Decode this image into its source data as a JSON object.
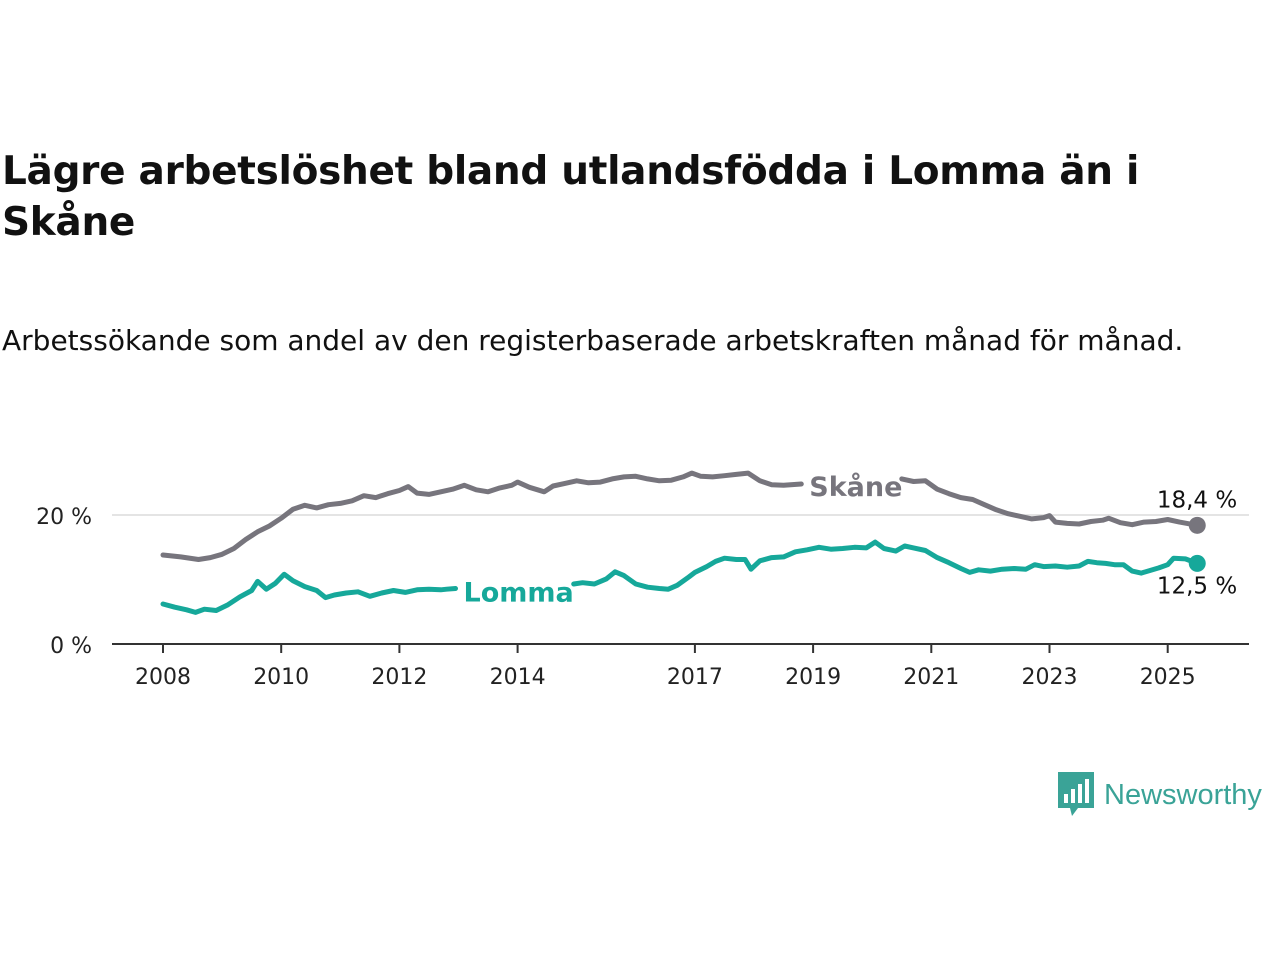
{
  "title": "Lägre arbetslöshet bland utlandsfödda i Lomma än i Skåne",
  "subtitle": "Arbetssökande som andel av den registerbaserade arbetskraften månad för månad.",
  "logo_text": "Newsworthy",
  "colors": {
    "skane": "#77757d",
    "lomma": "#16a89a",
    "grid": "#dcdcdc",
    "axis": "#333333"
  },
  "chart_data": {
    "type": "line",
    "title": "Lägre arbetslöshet bland utlandsfödda i Lomma än i Skåne",
    "subtitle": "Arbetssökande som andel av den registerbaserade arbetskraften månad för månad.",
    "x_ticks": [
      "2008",
      "2010",
      "2012",
      "2014",
      "2017",
      "2019",
      "2021",
      "2023",
      "2025"
    ],
    "y_ticks": [
      "0 %",
      "20 %"
    ],
    "xlim": [
      2007.3,
      2026.4
    ],
    "ylim": [
      0,
      30
    ],
    "grid": true,
    "series": [
      {
        "name": "Skåne",
        "end_label": "18,4 %",
        "points": [
          [
            2008.0,
            13.8
          ],
          [
            2008.3,
            13.5
          ],
          [
            2008.6,
            13.1
          ],
          [
            2008.8,
            13.4
          ],
          [
            2009.0,
            13.9
          ],
          [
            2009.2,
            14.8
          ],
          [
            2009.4,
            16.2
          ],
          [
            2009.6,
            17.4
          ],
          [
            2009.8,
            18.3
          ],
          [
            2010.0,
            19.5
          ],
          [
            2010.2,
            20.9
          ],
          [
            2010.4,
            21.5
          ],
          [
            2010.6,
            21.1
          ],
          [
            2010.8,
            21.6
          ],
          [
            2011.0,
            21.8
          ],
          [
            2011.2,
            22.2
          ],
          [
            2011.4,
            23.0
          ],
          [
            2011.6,
            22.7
          ],
          [
            2011.8,
            23.3
          ],
          [
            2012.0,
            23.8
          ],
          [
            2012.15,
            24.4
          ],
          [
            2012.3,
            23.4
          ],
          [
            2012.5,
            23.2
          ],
          [
            2012.7,
            23.6
          ],
          [
            2012.9,
            24.0
          ],
          [
            2013.1,
            24.6
          ],
          [
            2013.3,
            23.9
          ],
          [
            2013.5,
            23.6
          ],
          [
            2013.7,
            24.2
          ],
          [
            2013.9,
            24.6
          ],
          [
            2014.0,
            25.1
          ],
          [
            2014.2,
            24.3
          ],
          [
            2014.45,
            23.6
          ],
          [
            2014.6,
            24.5
          ],
          [
            2014.8,
            24.9
          ],
          [
            2015.0,
            25.3
          ],
          [
            2015.2,
            25.0
          ],
          [
            2015.4,
            25.1
          ],
          [
            2015.6,
            25.6
          ],
          [
            2015.8,
            25.9
          ],
          [
            2016.0,
            26.0
          ],
          [
            2016.2,
            25.6
          ],
          [
            2016.4,
            25.3
          ],
          [
            2016.6,
            25.4
          ],
          [
            2016.8,
            25.9
          ],
          [
            2016.95,
            26.5
          ],
          [
            2017.1,
            26.0
          ],
          [
            2017.3,
            25.9
          ],
          [
            2017.5,
            26.1
          ],
          [
            2017.7,
            26.3
          ],
          [
            2017.9,
            26.5
          ],
          [
            2018.1,
            25.3
          ],
          [
            2018.3,
            24.7
          ],
          [
            2018.5,
            24.6
          ],
          [
            2018.8,
            24.8
          ]
        ],
        "points_b": [
          [
            2020.5,
            25.6
          ],
          [
            2020.7,
            25.2
          ],
          [
            2020.9,
            25.3
          ],
          [
            2021.1,
            24.0
          ],
          [
            2021.3,
            23.3
          ],
          [
            2021.5,
            22.7
          ],
          [
            2021.7,
            22.4
          ],
          [
            2021.9,
            21.6
          ],
          [
            2022.1,
            20.8
          ],
          [
            2022.3,
            20.2
          ],
          [
            2022.5,
            19.8
          ],
          [
            2022.7,
            19.4
          ],
          [
            2022.9,
            19.6
          ],
          [
            2023.0,
            19.9
          ],
          [
            2023.1,
            18.9
          ],
          [
            2023.3,
            18.7
          ],
          [
            2023.5,
            18.6
          ],
          [
            2023.7,
            19.0
          ],
          [
            2023.9,
            19.2
          ],
          [
            2024.0,
            19.5
          ],
          [
            2024.2,
            18.8
          ],
          [
            2024.4,
            18.5
          ],
          [
            2024.6,
            18.9
          ],
          [
            2024.8,
            19.0
          ],
          [
            2025.0,
            19.3
          ],
          [
            2025.2,
            18.9
          ],
          [
            2025.5,
            18.4
          ]
        ]
      },
      {
        "name": "Lomma",
        "end_label": "12,5 %",
        "points": [
          [
            2008.0,
            6.2
          ],
          [
            2008.2,
            5.7
          ],
          [
            2008.4,
            5.3
          ],
          [
            2008.55,
            4.9
          ],
          [
            2008.7,
            5.4
          ],
          [
            2008.9,
            5.2
          ],
          [
            2009.1,
            6.1
          ],
          [
            2009.3,
            7.3
          ],
          [
            2009.5,
            8.3
          ],
          [
            2009.6,
            9.7
          ],
          [
            2009.75,
            8.5
          ],
          [
            2009.9,
            9.4
          ],
          [
            2010.05,
            10.8
          ],
          [
            2010.2,
            9.8
          ],
          [
            2010.4,
            8.9
          ],
          [
            2010.6,
            8.3
          ],
          [
            2010.75,
            7.2
          ],
          [
            2010.9,
            7.6
          ],
          [
            2011.1,
            7.9
          ],
          [
            2011.3,
            8.1
          ],
          [
            2011.5,
            7.4
          ],
          [
            2011.7,
            7.9
          ],
          [
            2011.9,
            8.3
          ],
          [
            2012.1,
            8.0
          ],
          [
            2012.3,
            8.4
          ],
          [
            2012.5,
            8.5
          ],
          [
            2012.7,
            8.4
          ],
          [
            2012.8,
            8.5
          ],
          [
            2012.95,
            8.6
          ]
        ],
        "points_b": [
          [
            2014.95,
            9.3
          ],
          [
            2015.1,
            9.5
          ],
          [
            2015.3,
            9.3
          ],
          [
            2015.5,
            10.1
          ],
          [
            2015.65,
            11.2
          ],
          [
            2015.8,
            10.6
          ],
          [
            2016.0,
            9.3
          ],
          [
            2016.2,
            8.8
          ],
          [
            2016.4,
            8.6
          ],
          [
            2016.55,
            8.5
          ],
          [
            2016.7,
            9.1
          ],
          [
            2016.9,
            10.4
          ],
          [
            2017.0,
            11.1
          ],
          [
            2017.2,
            12.0
          ],
          [
            2017.35,
            12.8
          ],
          [
            2017.5,
            13.3
          ],
          [
            2017.7,
            13.1
          ],
          [
            2017.85,
            13.1
          ],
          [
            2017.95,
            11.6
          ],
          [
            2018.1,
            12.9
          ],
          [
            2018.3,
            13.4
          ],
          [
            2018.5,
            13.5
          ],
          [
            2018.7,
            14.3
          ],
          [
            2018.9,
            14.6
          ],
          [
            2019.1,
            15.0
          ],
          [
            2019.3,
            14.7
          ],
          [
            2019.5,
            14.8
          ],
          [
            2019.7,
            15.0
          ],
          [
            2019.9,
            14.9
          ],
          [
            2020.05,
            15.8
          ],
          [
            2020.2,
            14.8
          ],
          [
            2020.4,
            14.4
          ],
          [
            2020.55,
            15.2
          ],
          [
            2020.7,
            14.9
          ],
          [
            2020.9,
            14.5
          ],
          [
            2021.1,
            13.4
          ],
          [
            2021.3,
            12.6
          ],
          [
            2021.5,
            11.7
          ],
          [
            2021.65,
            11.1
          ],
          [
            2021.8,
            11.5
          ],
          [
            2022.0,
            11.3
          ],
          [
            2022.2,
            11.6
          ],
          [
            2022.4,
            11.7
          ],
          [
            2022.6,
            11.6
          ],
          [
            2022.75,
            12.3
          ],
          [
            2022.9,
            12.0
          ],
          [
            2023.1,
            12.1
          ],
          [
            2023.3,
            11.9
          ],
          [
            2023.5,
            12.1
          ],
          [
            2023.65,
            12.8
          ],
          [
            2023.8,
            12.6
          ],
          [
            2023.95,
            12.5
          ],
          [
            2024.1,
            12.3
          ],
          [
            2024.25,
            12.3
          ],
          [
            2024.4,
            11.3
          ],
          [
            2024.55,
            11.0
          ],
          [
            2024.7,
            11.4
          ],
          [
            2024.85,
            11.8
          ],
          [
            2025.0,
            12.3
          ],
          [
            2025.1,
            13.3
          ],
          [
            2025.3,
            13.2
          ],
          [
            2025.5,
            12.5
          ]
        ]
      }
    ]
  }
}
